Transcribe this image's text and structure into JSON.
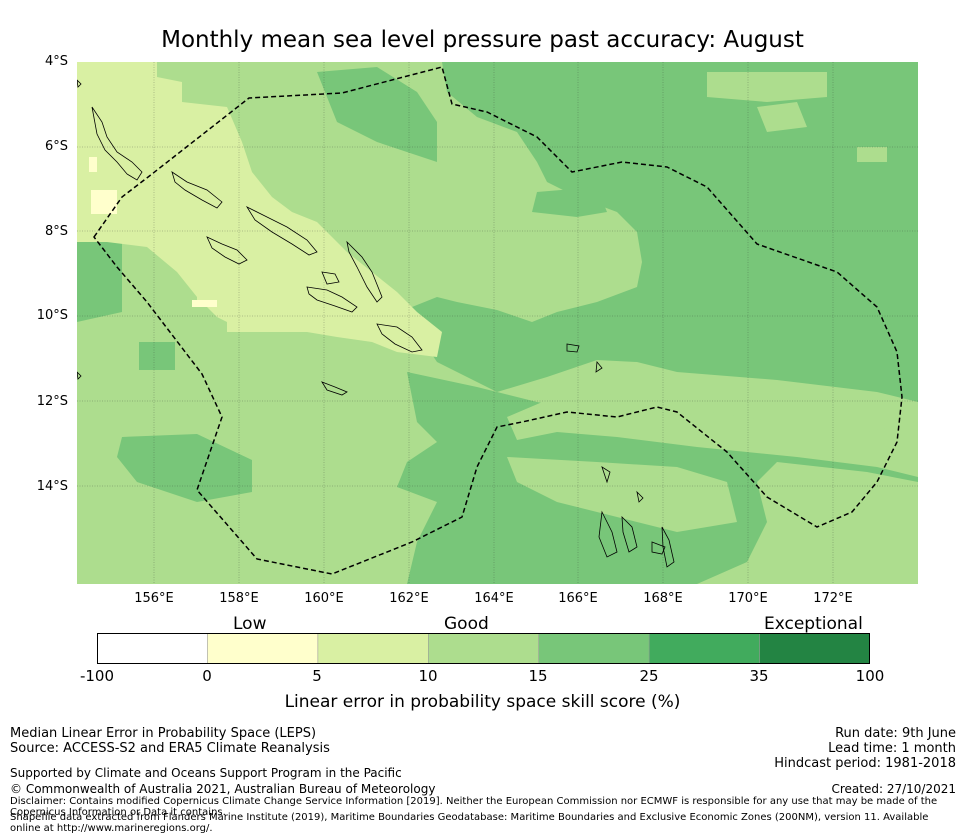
{
  "title": "Monthly mean sea level pressure past accuracy: August",
  "latitude_ticks": [
    "4°S",
    "6°S",
    "8°S",
    "10°S",
    "12°S",
    "14°S"
  ],
  "longitude_ticks": [
    "156°E",
    "158°E",
    "160°E",
    "162°E",
    "164°E",
    "166°E",
    "168°E",
    "170°E",
    "172°E"
  ],
  "map_extent": {
    "lon_min": 154.2,
    "lon_max": 174.0,
    "lat_min": -16.3,
    "lat_max": -4.0
  },
  "colorbar": {
    "categories": [
      {
        "label": "Low",
        "at": 2.5
      },
      {
        "label": "Good",
        "at": 12.5
      },
      {
        "label": "Exceptional",
        "at": 30
      }
    ],
    "tick_labels": [
      "-100",
      "0",
      "5",
      "10",
      "15",
      "25",
      "35",
      "100"
    ],
    "bins": [
      {
        "from": -100,
        "to": 0,
        "color": "#ffffff"
      },
      {
        "from": 0,
        "to": 5,
        "color": "#ffffcc"
      },
      {
        "from": 5,
        "to": 10,
        "color": "#d9f0a3"
      },
      {
        "from": 10,
        "to": 15,
        "color": "#addd8e"
      },
      {
        "from": 15,
        "to": 25,
        "color": "#78c679"
      },
      {
        "from": 25,
        "to": 35,
        "color": "#41ab5d"
      },
      {
        "from": 35,
        "to": 100,
        "color": "#238443"
      }
    ],
    "label": "Linear error in probability space skill score (%)"
  },
  "footer": {
    "line1": "Median Linear Error in Probability Space (LEPS)",
    "line2": "Source: ACCESS-S2 and ERA5 Climate Reanalysis",
    "run_date": "Run date: 9th June",
    "lead_time": "Lead time: 1 month",
    "hindcast": "Hindcast period: 1981-2018",
    "support": "Supported by Climate and Oceans Support Program in the Pacific",
    "copyright": "© Commonwealth of Australia 2021, Australian Bureau of Meteorology",
    "created": "Created: 27/10/2021",
    "disclaimer": "Disclaimer: Contains modified Copernicus Climate Change Service Information [2019]. Neither the European Commission nor ECMWF is responsible for any use that may be made of the Copernicus Information or Data it contains.",
    "shapefile": "Shapefile data extracted from Flanders Marine Institute (2019), Maritime Boundaries Geodatabase: Maritime Boundaries and Exclusive Economic Zones (200NM), version 11. Available online at http://www.marineregions.org/."
  }
}
